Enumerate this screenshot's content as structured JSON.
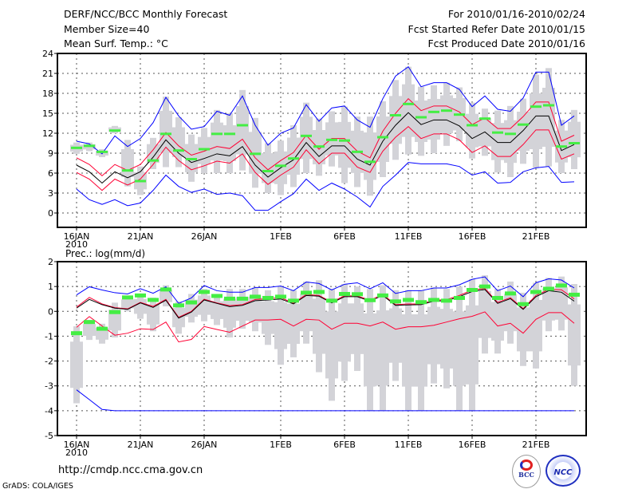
{
  "header": {
    "title": "DERF/NCC/BCC Monthly Forecast",
    "member_size": "Member Size=40",
    "variable1": "Mean Surf. Temp.: °C",
    "period": "For 2010/01/16-2010/02/24",
    "started": "Fcst Started Refer Date 2010/01/15",
    "produced": "Fcst Produced Date 2010/01/16"
  },
  "footer": {
    "url": "http://cmdp.ncc.cma.gov.cn",
    "credit": "GrADS: COLA/IGES",
    "logo_bcc": "BCC",
    "logo_ncc": "NCC"
  },
  "colors": {
    "extreme": "#0000ff",
    "spread": "#ff0033",
    "mean": "#000000",
    "observed": "#44ee44",
    "members": "#d3d3d8"
  },
  "chart_data": [
    {
      "type": "line",
      "title": "Mean Surf. Temp.: °C",
      "days": 40,
      "xticks": [
        "16JAN",
        "21JAN",
        "26JAN",
        "1FEB",
        "6FEB",
        "11FEB",
        "16FEB",
        "21FEB"
      ],
      "xtick_days": [
        0,
        5,
        10,
        16,
        21,
        26,
        31,
        36
      ],
      "year_label": "2010",
      "ylim": [
        -2.16,
        24
      ],
      "yticks": [
        0,
        3,
        6,
        9,
        12,
        15,
        18,
        21,
        24
      ],
      "grid": true,
      "series": {
        "max": [
          10.8,
          10.4,
          8.9,
          11.6,
          10.0,
          11.2,
          13.6,
          17.4,
          14.6,
          12.6,
          13.0,
          15.3,
          14.7,
          17.6,
          13.2,
          10.2,
          12.0,
          12.8,
          16.3,
          13.8,
          15.8,
          16.1,
          14.0,
          12.9,
          17.2,
          20.6,
          22.0,
          19.0,
          19.6,
          19.6,
          18.6,
          16.0,
          17.6,
          15.6,
          15.3,
          17.3,
          21.2,
          21.2,
          13.2,
          14.6
        ],
        "min": [
          3.6,
          2.0,
          1.3,
          2.0,
          1.1,
          1.5,
          3.4,
          5.7,
          4.0,
          3.1,
          3.6,
          2.8,
          3.0,
          2.6,
          0.4,
          0.4,
          1.7,
          2.9,
          5.1,
          3.4,
          4.5,
          3.6,
          2.4,
          0.9,
          4.0,
          5.7,
          7.6,
          7.4,
          7.4,
          7.4,
          7.0,
          5.7,
          6.2,
          4.5,
          4.6,
          6.2,
          6.8,
          7.0,
          4.6,
          4.7
        ],
        "mean": [
          7.2,
          6.2,
          4.5,
          6.2,
          5.3,
          6.2,
          8.4,
          11.0,
          9.0,
          7.6,
          8.2,
          8.9,
          8.6,
          10.0,
          7.2,
          5.4,
          6.8,
          8.0,
          10.6,
          8.5,
          10.1,
          10.1,
          8.1,
          7.2,
          10.8,
          13.2,
          15.1,
          13.3,
          14.0,
          14.0,
          13.1,
          11.2,
          12.2,
          10.6,
          10.6,
          12.4,
          14.6,
          14.6,
          9.4,
          10.3
        ],
        "upper": [
          8.3,
          7.3,
          5.6,
          7.3,
          6.4,
          7.3,
          9.5,
          12.1,
          10.1,
          8.7,
          9.3,
          10.0,
          9.7,
          11.1,
          8.3,
          6.5,
          7.9,
          9.1,
          11.7,
          9.6,
          11.2,
          11.2,
          9.3,
          8.3,
          12.3,
          15.0,
          17.2,
          15.4,
          16.1,
          16.1,
          15.2,
          13.3,
          14.3,
          12.7,
          12.7,
          14.5,
          16.7,
          16.7,
          10.8,
          11.7
        ],
        "lower": [
          6.1,
          5.1,
          3.4,
          5.1,
          4.2,
          5.1,
          7.3,
          9.9,
          7.9,
          6.5,
          7.1,
          7.8,
          7.5,
          8.9,
          6.1,
          4.3,
          5.7,
          6.9,
          9.5,
          7.4,
          9.0,
          9.0,
          6.9,
          6.1,
          9.3,
          11.4,
          13.0,
          11.2,
          11.9,
          11.9,
          11.0,
          9.1,
          10.1,
          8.5,
          8.5,
          10.3,
          12.5,
          12.5,
          8.1,
          8.9
        ],
        "observed": [
          9.8,
          10.1,
          9.2,
          12.4,
          6.4,
          4.8,
          7.9,
          11.9,
          9.4,
          8.1,
          9.6,
          11.9,
          11.9,
          13.2,
          8.9,
          6.3,
          7.1,
          8.2,
          11.6,
          10.0,
          11.0,
          10.9,
          9.2,
          7.7,
          11.4,
          14.7,
          16.4,
          14.4,
          15.2,
          15.4,
          14.8,
          13.2,
          14.2,
          12.1,
          11.9,
          13.3,
          16.0,
          16.2,
          10.0,
          10.5
        ],
        "member_low": [
          8.9,
          9.3,
          8.4,
          12.0,
          4.0,
          2.7,
          6.6,
          6.9,
          6.9,
          4.7,
          6.0,
          6.0,
          6.0,
          6.4,
          3.8,
          3.0,
          2.7,
          3.9,
          6.0,
          5.6,
          7.0,
          4.5,
          3.9,
          2.6,
          5.4,
          8.0,
          8.8,
          8.6,
          9.0,
          10.1,
          10.8,
          8.2,
          8.6,
          6.1,
          5.4,
          7.4,
          6.8,
          7.0,
          6.0,
          6.6
        ],
        "member_high": [
          10.6,
          10.6,
          9.6,
          13.1,
          11.0,
          7.0,
          11.3,
          17.5,
          14.4,
          11.8,
          12.8,
          15.5,
          15.0,
          18.5,
          14.3,
          10.5,
          10.9,
          13.2,
          16.6,
          14.2,
          15.3,
          16.0,
          14.5,
          14.5,
          16.8,
          20.0,
          22.0,
          19.0,
          19.2,
          19.6,
          18.9,
          16.6,
          15.7,
          15.4,
          16.1,
          17.2,
          20.8,
          21.8,
          14.0,
          15.5
        ]
      }
    },
    {
      "type": "line",
      "title": "Prec.: log(mm/d)",
      "days": 40,
      "xticks": [
        "16JAN",
        "21JAN",
        "26JAN",
        "1FEB",
        "6FEB",
        "11FEB",
        "16FEB",
        "21FEB"
      ],
      "xtick_days": [
        0,
        5,
        10,
        16,
        21,
        26,
        31,
        36
      ],
      "year_label": "2010",
      "ylim": [
        -5,
        2
      ],
      "yticks": [
        -5,
        -4,
        -3,
        -2,
        -1,
        0,
        1,
        2
      ],
      "grid": true,
      "series": {
        "max": [
          0.66,
          0.99,
          0.86,
          0.75,
          0.7,
          0.91,
          0.73,
          0.99,
          0.32,
          0.54,
          1.04,
          0.83,
          0.77,
          0.77,
          0.96,
          0.96,
          1.02,
          0.83,
          1.18,
          1.12,
          0.86,
          1.09,
          1.15,
          0.91,
          1.15,
          0.72,
          0.83,
          0.83,
          0.94,
          0.94,
          1.07,
          1.29,
          1.39,
          0.83,
          1.02,
          0.59,
          1.15,
          1.31,
          1.26,
          0.94
        ],
        "min": [
          -3.16,
          -3.55,
          -3.95,
          -4,
          -4,
          -4,
          -4,
          -4,
          -4,
          -4,
          -4,
          -4,
          -4,
          -4,
          -4,
          -4,
          -4,
          -4,
          -4,
          -4,
          -4,
          -4,
          -4,
          -4,
          -4,
          -4,
          -4,
          -4,
          -4,
          -4,
          -4,
          -4,
          -4,
          -4,
          -4,
          -4,
          -4,
          -4,
          -4,
          -4
        ],
        "mean": [
          0.13,
          0.48,
          0.27,
          0.13,
          0.08,
          0.34,
          0.16,
          0.45,
          -0.27,
          -0.03,
          0.46,
          0.32,
          0.19,
          0.24,
          0.43,
          0.46,
          0.5,
          0.3,
          0.64,
          0.61,
          0.34,
          0.59,
          0.59,
          0.41,
          0.64,
          0.24,
          0.26,
          0.27,
          0.41,
          0.43,
          0.59,
          0.8,
          0.88,
          0.32,
          0.51,
          0.08,
          0.59,
          0.83,
          0.77,
          0.41
        ],
        "upper": [
          0.17,
          0.56,
          0.3,
          0.15,
          0.1,
          0.36,
          0.2,
          0.48,
          -0.24,
          0.0,
          0.49,
          0.34,
          0.23,
          0.27,
          0.48,
          0.51,
          0.55,
          0.33,
          0.68,
          0.64,
          0.37,
          0.63,
          0.62,
          0.45,
          0.68,
          0.27,
          0.3,
          0.3,
          0.45,
          0.47,
          0.64,
          0.86,
          0.92,
          0.36,
          0.55,
          0.11,
          0.64,
          0.88,
          0.87,
          0.5
        ],
        "lower": [
          -0.64,
          -0.21,
          -0.59,
          -0.96,
          -0.88,
          -0.7,
          -0.73,
          -0.43,
          -1.23,
          -1.13,
          -0.61,
          -0.73,
          -0.84,
          -0.59,
          -0.35,
          -0.35,
          -0.32,
          -0.59,
          -0.32,
          -0.35,
          -0.72,
          -0.48,
          -0.48,
          -0.59,
          -0.43,
          -0.72,
          -0.62,
          -0.62,
          -0.56,
          -0.43,
          -0.3,
          -0.2,
          -0.02,
          -0.59,
          -0.48,
          -0.88,
          -0.32,
          -0.05,
          -0.05,
          -0.48
        ],
        "observed": [
          -0.88,
          -0.43,
          -0.7,
          -0.03,
          0.56,
          0.64,
          0.46,
          0.88,
          0.24,
          0.36,
          0.78,
          0.62,
          0.51,
          0.51,
          0.59,
          0.54,
          0.59,
          0.43,
          0.75,
          0.78,
          0.43,
          0.7,
          0.69,
          0.45,
          0.64,
          0.4,
          0.46,
          0.37,
          0.46,
          0.43,
          0.54,
          0.86,
          1.0,
          0.54,
          0.72,
          0.29,
          0.78,
          0.91,
          1.04,
          0.67
        ],
        "member_low": [
          -3.7,
          -1.15,
          -1.3,
          -1.05,
          0.0,
          -0.3,
          -0.8,
          0.2,
          -0.9,
          -0.45,
          -0.4,
          -0.55,
          -1.05,
          -0.7,
          -0.8,
          -1.35,
          -2.15,
          -1.85,
          -1.3,
          -2.45,
          -3.6,
          -2.8,
          -2.4,
          -4,
          -4,
          -2.8,
          -4,
          -4,
          -2.9,
          -3.1,
          -4,
          -4,
          -1.7,
          -1.7,
          -1.3,
          -2.2,
          -2.3,
          -0.8,
          -0.77,
          -3.0
        ],
        "member_high": [
          -0.6,
          -0.35,
          -0.5,
          0.35,
          0.6,
          0.7,
          0.55,
          1.05,
          0.4,
          0.7,
          0.9,
          0.65,
          0.9,
          0.9,
          0.95,
          0.85,
          1.0,
          0.85,
          1.2,
          1.25,
          0.9,
          1.1,
          1.0,
          0.9,
          1.05,
          0.85,
          0.85,
          0.85,
          0.95,
          0.9,
          1.0,
          1.3,
          1.45,
          0.9,
          1.2,
          0.75,
          1.15,
          1.35,
          1.4,
          1.1
        ]
      }
    }
  ]
}
